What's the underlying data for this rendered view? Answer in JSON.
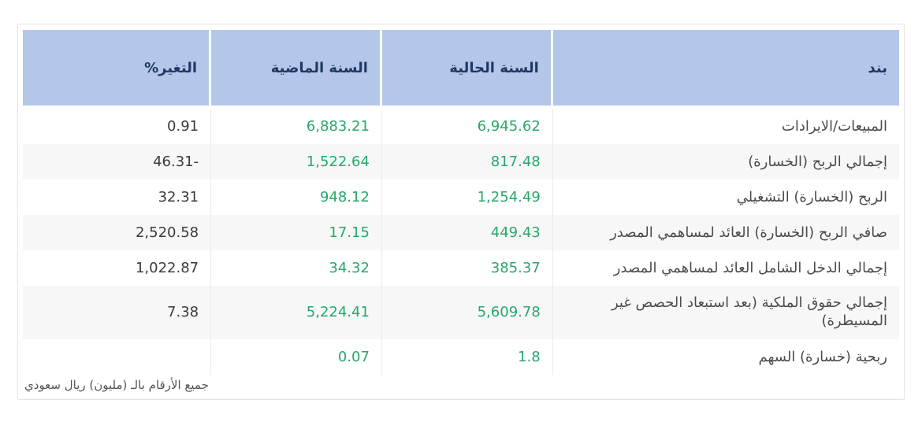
{
  "table": {
    "columns": [
      {
        "id": "item",
        "label": "بند"
      },
      {
        "id": "current_year",
        "label": "السنة الحالية"
      },
      {
        "id": "previous_year",
        "label": "السنة الماضية"
      },
      {
        "id": "change_pct",
        "label": "التغير%"
      }
    ],
    "rows": [
      {
        "item": "المبيعات/الايرادات",
        "current_year": "6,945.62",
        "previous_year": "6,883.21",
        "change_pct": "0.91"
      },
      {
        "item": "إجمالي الربح (الخسارة)",
        "current_year": "817.48",
        "previous_year": "1,522.64",
        "change_pct": "-46.31"
      },
      {
        "item": "الربح (الخسارة) التشغيلي",
        "current_year": "1,254.49",
        "previous_year": "948.12",
        "change_pct": "32.31"
      },
      {
        "item": "صافي الربح (الخسارة) العائد لمساهمي المصدر",
        "current_year": "449.43",
        "previous_year": "17.15",
        "change_pct": "2,520.58"
      },
      {
        "item": "إجمالي الدخل الشامل العائد لمساهمي المصدر",
        "current_year": "385.37",
        "previous_year": "34.32",
        "change_pct": "1,022.87"
      },
      {
        "item": "إجمالي حقوق الملكية (بعد استبعاد الحصص غير المسيطرة)",
        "current_year": "5,609.78",
        "previous_year": "5,224.41",
        "change_pct": "7.38"
      },
      {
        "item": "ربحية (خسارة) السهم",
        "current_year": "1.8",
        "previous_year": "0.07",
        "change_pct": ""
      }
    ],
    "footnote": "جميع الأرقام بالـ (مليون) ريال سعودي"
  },
  "colors": {
    "header_bg": "#b4c7e8",
    "header_text": "#1f3864",
    "value_green": "#28a769",
    "change_text": "#3b3b3b",
    "item_text": "#4b4b4b",
    "row_alt_bg": "#f7f7f7",
    "card_border": "#e4e4e4"
  }
}
